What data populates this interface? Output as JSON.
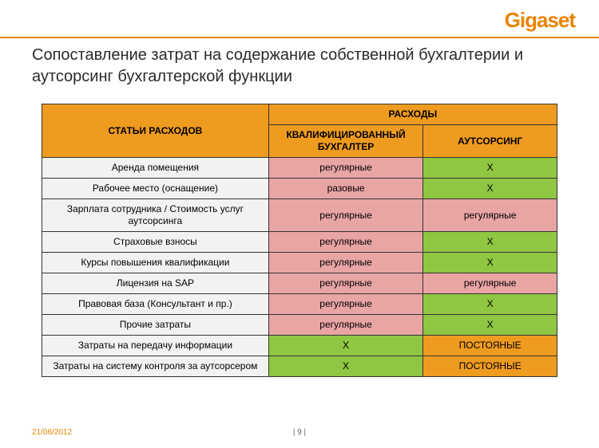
{
  "brand": {
    "text": "Gigaset",
    "color": "#e98300"
  },
  "accent_color": "#e98300",
  "title": "Сопоставление затрат на содержание собственной бухгалтерии и аутсорсинг бухгалтерской функции",
  "table": {
    "header": {
      "items": "СТАТЬИ РАСХОДОВ",
      "expenses": "РАСХОДЫ",
      "accountant": "КВАЛИФИЦИРОВАННЫЙ БУХГАЛТЕР",
      "outsourcing": "АУТСОРСИНГ",
      "bg": "#ef9b1f",
      "fg": "#000000"
    },
    "cell_colors": {
      "item_bg": "#f2f2f2",
      "pink_bg": "#e9a4a4",
      "green_bg": "#8fc642",
      "orange_bg": "#ef9b1f",
      "fg": "#000000"
    },
    "rows": [
      {
        "item": "Аренда помещения",
        "acc": {
          "text": "регулярные",
          "style": "pink"
        },
        "out": {
          "text": "X",
          "style": "green"
        }
      },
      {
        "item": "Рабочее место (оснащение)",
        "acc": {
          "text": "разовые",
          "style": "pink"
        },
        "out": {
          "text": "X",
          "style": "green"
        }
      },
      {
        "item": "Зарплата сотрудника / Стоимость услуг аутсорсинга",
        "acc": {
          "text": "регулярные",
          "style": "pink"
        },
        "out": {
          "text": "регулярные",
          "style": "pink"
        }
      },
      {
        "item": "Страховые взносы",
        "acc": {
          "text": "регулярные",
          "style": "pink"
        },
        "out": {
          "text": "X",
          "style": "green"
        }
      },
      {
        "item": "Курсы повышения квалификации",
        "acc": {
          "text": "регулярные",
          "style": "pink"
        },
        "out": {
          "text": "X",
          "style": "green"
        }
      },
      {
        "item": "Лицензия на SAP",
        "acc": {
          "text": "регулярные",
          "style": "pink"
        },
        "out": {
          "text": "регулярные",
          "style": "pink"
        }
      },
      {
        "item": "Правовая база (Консультант и пр.)",
        "acc": {
          "text": "регулярные",
          "style": "pink"
        },
        "out": {
          "text": "X",
          "style": "green"
        }
      },
      {
        "item": "Прочие затраты",
        "acc": {
          "text": "регулярные",
          "style": "pink"
        },
        "out": {
          "text": "X",
          "style": "green"
        }
      },
      {
        "item": "Затраты на передачу информации",
        "acc": {
          "text": "X",
          "style": "green"
        },
        "out": {
          "text": "ПОСТОЯНЫЕ",
          "style": "orange"
        }
      },
      {
        "item": "Затраты на систему контроля за аутсорсером",
        "acc": {
          "text": "X",
          "style": "green"
        },
        "out": {
          "text": "ПОСТОЯНЫЕ",
          "style": "orange"
        }
      }
    ]
  },
  "footer": {
    "date": "21/06/2012",
    "page": "| 9 |",
    "date_color": "#e98300"
  }
}
